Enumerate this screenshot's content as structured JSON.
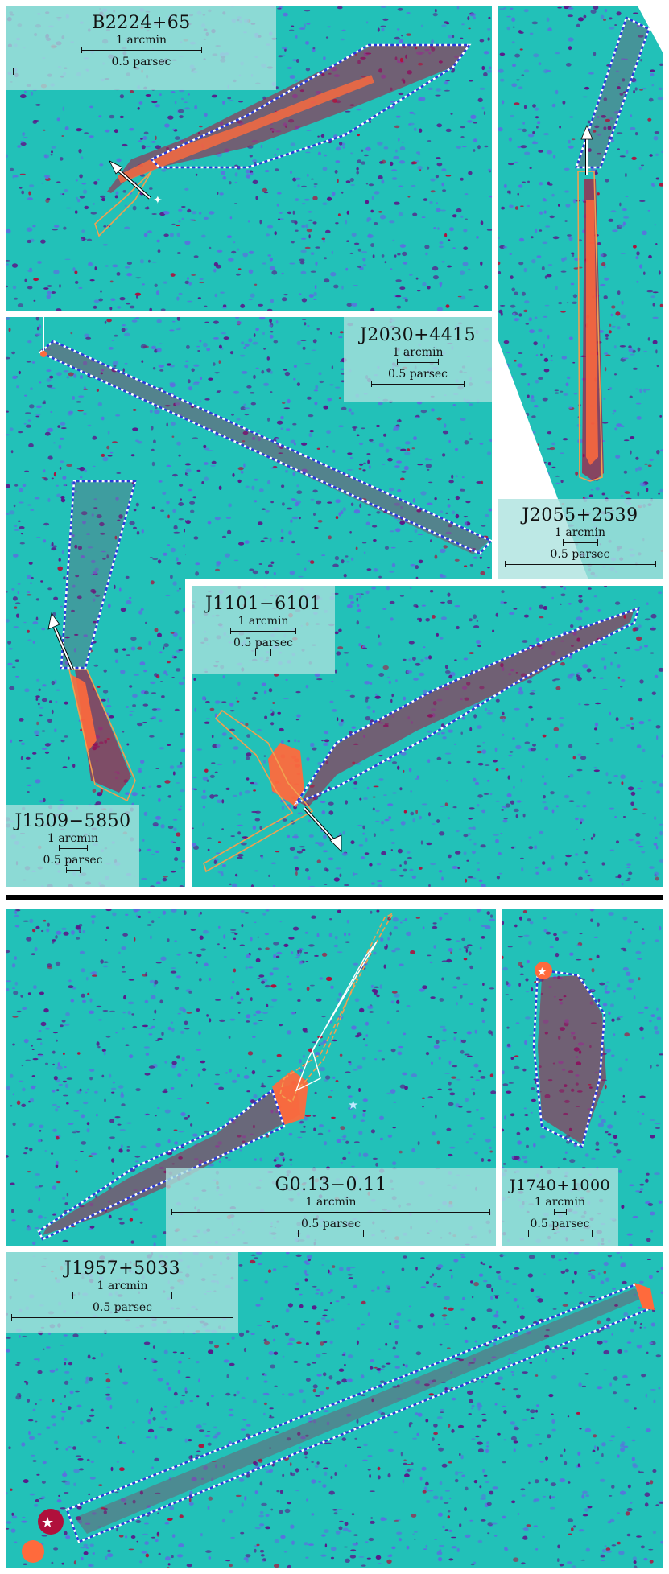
{
  "colors": {
    "background": "#22c1b8",
    "noise_dark": "#5a1a8a",
    "noise_light": "#5b6fe0",
    "core": "#b0103c",
    "hot": "#ff6a3c",
    "peak": "#ffb07a",
    "region_blue": "#2a3bd8",
    "region_orange": "#f0a050"
  },
  "units": {
    "arcmin": "1 arcmin",
    "parsec": "0.5 parsec"
  },
  "panels": [
    {
      "id": "b2224",
      "name": "B2224+65"
    },
    {
      "id": "j2055",
      "name": "J2055+2539"
    },
    {
      "id": "j2030",
      "name": "J2030+4415"
    },
    {
      "id": "j1509",
      "name": "J1509−5850"
    },
    {
      "id": "j1101",
      "name": "J1101−6101"
    },
    {
      "id": "g013",
      "name": "G0.13−0.11"
    },
    {
      "id": "j1740",
      "name": "J1740+1000"
    },
    {
      "id": "j1957",
      "name": "J1957+5033"
    }
  ]
}
